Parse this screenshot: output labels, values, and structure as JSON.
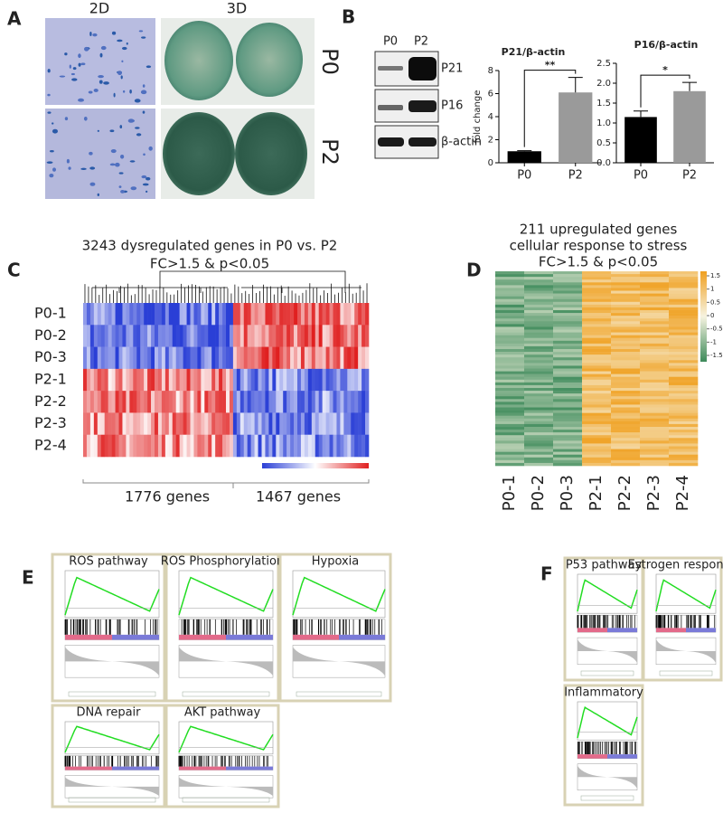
{
  "panels": {
    "A": {
      "label": "A",
      "columns": [
        "2D",
        "3D"
      ],
      "rows": [
        "P0",
        "P2"
      ]
    },
    "B": {
      "label": "B",
      "blot": {
        "lanes": [
          "P0",
          "P2"
        ],
        "bands": [
          "P21",
          "P16",
          "β-actin"
        ]
      },
      "charts": [
        {
          "type": "bar",
          "title": "P21/β-actin",
          "y_label": "fold change",
          "categories": [
            "P0",
            "P2"
          ],
          "values": [
            1,
            6.1
          ],
          "errors": [
            0.05,
            1.3
          ],
          "colors": [
            "#000000",
            "#9a9a9a"
          ],
          "ylim": [
            0,
            8
          ],
          "yticks": [
            0,
            2,
            4,
            6,
            8
          ],
          "significance": "**"
        },
        {
          "type": "bar",
          "title": "P16/β-actin",
          "categories": [
            "P0",
            "P2"
          ],
          "values": [
            1.15,
            1.8
          ],
          "errors": [
            0.15,
            0.22
          ],
          "colors": [
            "#000000",
            "#9a9a9a"
          ],
          "ylim": [
            0,
            2.5
          ],
          "yticks": [
            {
              "value": 0,
              "label": "0.0"
            },
            0.5,
            {
              "value": 1,
              "label": "1.0"
            },
            1.5,
            {
              "value": 2,
              "label": "2.0"
            },
            2.5
          ],
          "significance": "*"
        }
      ]
    },
    "C": {
      "label": "C",
      "title": "3243 dysregulated genes in P0 vs. P2",
      "subtitle": "FC>1.5 & p<0.05",
      "rows": [
        "P0-1",
        "P0-2",
        "P0-3",
        "P2-1",
        "P2-2",
        "P2-3",
        "P2-4"
      ],
      "groups": [
        "1776 genes",
        "1467 genes"
      ]
    },
    "D": {
      "label": "D",
      "title_lines": [
        "211 upregulated genes",
        "cellular response to stress",
        "FC>1.5 & p<0.05"
      ],
      "columns": [
        "P0-1",
        "P0-2",
        "P0-3",
        "P2-1",
        "P2-2",
        "P2-3",
        "P2-4"
      ],
      "scale_ticks": [
        1.5,
        1,
        0.5,
        0,
        -0.5,
        -1,
        -1.5
      ]
    },
    "E": {
      "label": "E",
      "plots": [
        "ROS pathway",
        "ROS Phosphorylation",
        "Hypoxia",
        "DNA repair",
        "AKT pathway"
      ]
    },
    "F": {
      "label": "F",
      "plots": [
        "P53 pathway",
        "Estrogen response",
        "Inflammatory"
      ]
    }
  }
}
